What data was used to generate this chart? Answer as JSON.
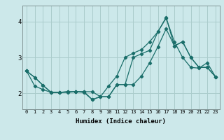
{
  "xlabel": "Humidex (Indice chaleur)",
  "bg_color": "#cce8ea",
  "grid_color": "#aacccc",
  "line_color": "#1a6e6a",
  "xlim": [
    -0.5,
    23.5
  ],
  "ylim": [
    1.55,
    4.45
  ],
  "yticks": [
    2,
    3,
    4
  ],
  "xticks": [
    0,
    1,
    2,
    3,
    4,
    5,
    6,
    7,
    8,
    9,
    10,
    11,
    12,
    13,
    14,
    15,
    16,
    17,
    18,
    19,
    20,
    21,
    22,
    23
  ],
  "series": [
    [
      2.62,
      2.44,
      2.22,
      2.02,
      2.02,
      2.02,
      2.04,
      2.02,
      1.82,
      1.9,
      2.2,
      2.48,
      3.0,
      3.12,
      3.22,
      3.44,
      3.72,
      4.1,
      3.44,
      3.0,
      2.72,
      2.7,
      2.85,
      2.46
    ],
    [
      2.62,
      2.44,
      2.22,
      2.02,
      2.02,
      2.04,
      2.04,
      2.04,
      2.04,
      1.9,
      1.9,
      2.24,
      2.24,
      3.0,
      3.1,
      3.2,
      3.72,
      4.12,
      3.32,
      3.44,
      3.0,
      2.72,
      2.72,
      2.46
    ],
    [
      2.62,
      2.2,
      2.1,
      2.02,
      2.02,
      2.04,
      2.04,
      2.04,
      1.82,
      1.9,
      1.9,
      2.24,
      2.24,
      2.24,
      2.48,
      2.85,
      3.3,
      3.8,
      3.32,
      3.44,
      3.0,
      2.72,
      2.72,
      2.46
    ]
  ]
}
